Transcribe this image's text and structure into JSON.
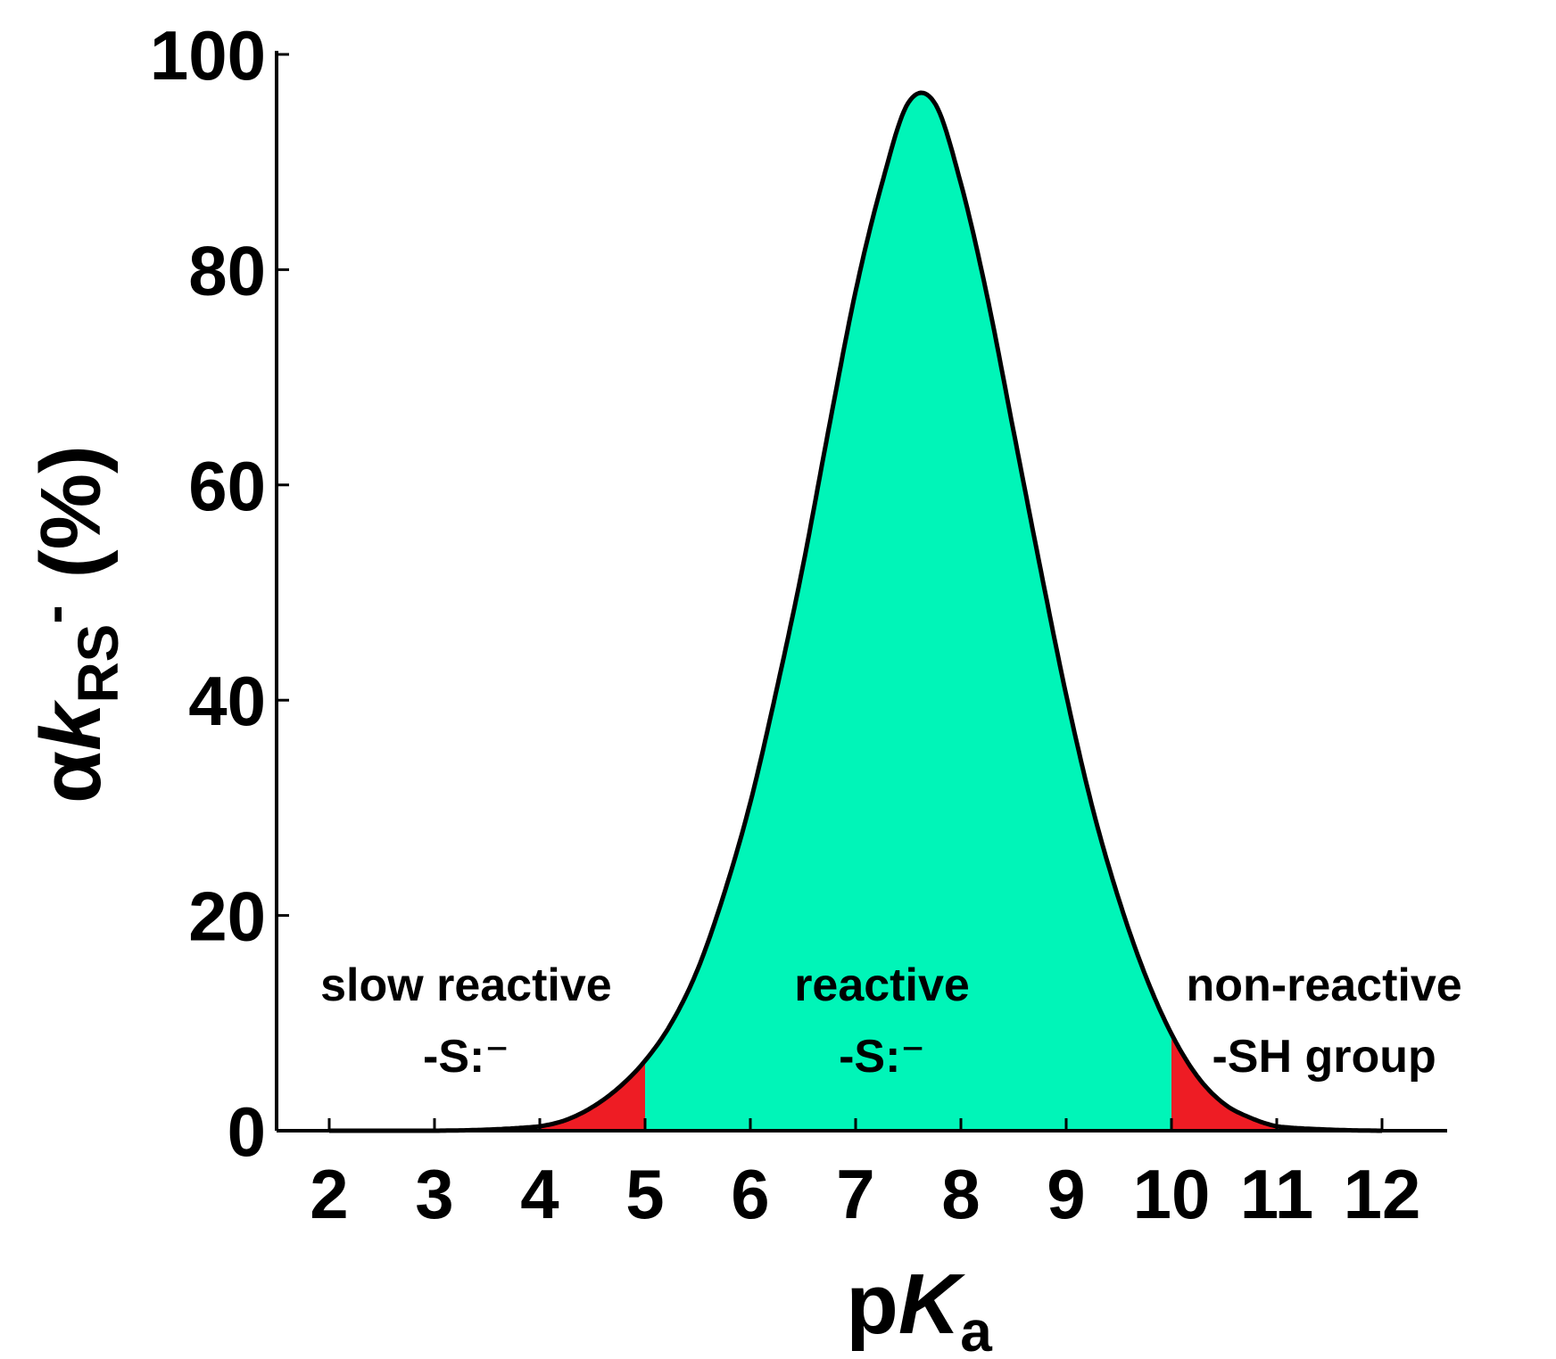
{
  "chart_data": {
    "type": "area",
    "xlabel": {
      "main": "p",
      "italic": "K",
      "subscript": "a"
    },
    "ylabel": {
      "greek": "α",
      "italic": "k",
      "subscript": "RS",
      "superscript": "-",
      "unit": "(%)"
    },
    "xlim": [
      1.5,
      12.5
    ],
    "ylim": [
      0,
      100
    ],
    "xticks": [
      2,
      3,
      4,
      5,
      6,
      7,
      8,
      9,
      10,
      11,
      12
    ],
    "xtick_labels": [
      "2",
      "3",
      "4",
      "5",
      "6",
      "7",
      "8",
      "9",
      "10",
      "11",
      "12"
    ],
    "yticks": [
      0,
      20,
      40,
      60,
      80,
      100
    ],
    "ytick_labels": [
      "0",
      "20",
      "40",
      "60",
      "80",
      "100"
    ],
    "grid": false,
    "series": [
      {
        "x": [
          2.0,
          2.5,
          3.0,
          3.5,
          4.0,
          4.25,
          4.5,
          4.75,
          5.0,
          5.25,
          5.5,
          5.75,
          6.0,
          6.25,
          6.5,
          6.75,
          7.0,
          7.25,
          7.5,
          7.75,
          8.0,
          8.25,
          8.5,
          8.75,
          9.0,
          9.25,
          9.5,
          9.75,
          10.0,
          10.25,
          10.5,
          10.75,
          11.0,
          11.5,
          12.0
        ],
        "y": [
          0.0,
          0.0,
          0.0,
          0.1,
          0.4,
          1.0,
          2.2,
          4.0,
          6.5,
          10.0,
          15.0,
          22.0,
          30.5,
          41.0,
          52.5,
          65.5,
          78.0,
          88.0,
          95.5,
          95.5,
          88.0,
          77.5,
          65.0,
          52.5,
          40.5,
          30.0,
          21.5,
          14.5,
          9.0,
          5.0,
          2.5,
          1.2,
          0.4,
          0.1,
          0.0
        ]
      }
    ],
    "regions": [
      {
        "from": 4.0,
        "to": 5.0,
        "color": "#ee1c24"
      },
      {
        "from": 5.0,
        "to": 10.0,
        "color": "#00f5b8"
      },
      {
        "from": 10.0,
        "to": 11.0,
        "color": "#ee1c24"
      }
    ],
    "annotations": [
      {
        "lines": [
          "slow reactive",
          "-S:⁻"
        ],
        "x": 3.3
      },
      {
        "lines": [
          "reactive",
          "-S:⁻"
        ],
        "x": 7.25
      },
      {
        "lines": [
          "non-reactive",
          "-SH group"
        ],
        "x": 11.45
      }
    ],
    "curve_color": "#000000"
  }
}
